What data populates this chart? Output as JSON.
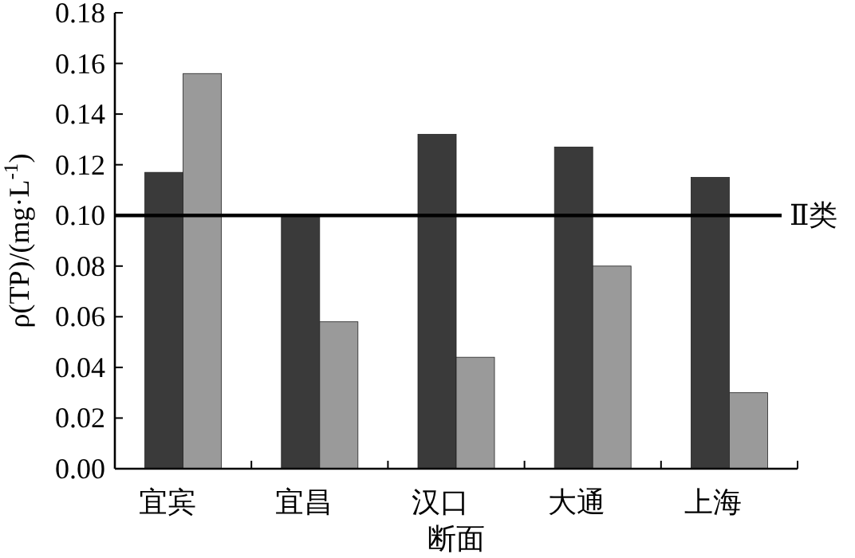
{
  "chart_data": {
    "type": "bar",
    "xlabel": "断面",
    "ylabel": "ρ(TP)/(mg·L$^{-1}$)",
    "categories": [
      "宜宾",
      "宜昌",
      "汉口",
      "大通",
      "上海"
    ],
    "series": [
      {
        "color": "#3a3a3a",
        "values": [
          0.117,
          0.1,
          0.132,
          0.127,
          0.115
        ]
      },
      {
        "color": "#9a9a9a",
        "values": [
          0.156,
          0.058,
          0.044,
          0.08,
          0.03
        ]
      }
    ],
    "ylim": [
      0,
      0.18
    ],
    "yticks": [
      {
        "value": 0,
        "label": "0.00"
      },
      {
        "value": 0.02,
        "label": "0.02"
      },
      {
        "value": 0.04,
        "label": "0.04"
      },
      {
        "value": 0.06,
        "label": "0.06"
      },
      {
        "value": 0.08,
        "label": "0.08"
      },
      {
        "value": 0.1,
        "label": "0.10"
      },
      {
        "value": 0.12,
        "label": "0.12"
      },
      {
        "value": 0.14,
        "label": "0.14"
      },
      {
        "value": 0.16,
        "label": "0.16"
      },
      {
        "value": 0.18,
        "label": "0.18"
      }
    ],
    "ref_lines": [
      {
        "axis": "y",
        "value": 0.1,
        "label": "Ⅱ类",
        "color": "#000000"
      }
    ],
    "grid": false
  }
}
